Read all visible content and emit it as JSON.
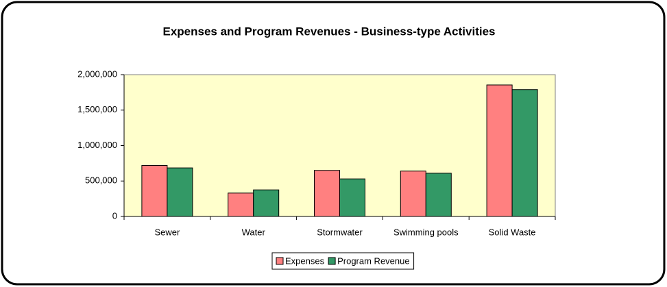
{
  "chart_data": {
    "type": "bar",
    "title": "Expenses and Program Revenues - Business-type Activities",
    "categories": [
      "Sewer",
      "Water",
      "Stormwater",
      "Swimming pools",
      "Solid Waste"
    ],
    "series": [
      {
        "name": "Expenses",
        "color": "#ff8080",
        "values": [
          720000,
          330000,
          650000,
          640000,
          1855000
        ]
      },
      {
        "name": "Program Revenue",
        "color": "#339966",
        "values": [
          685000,
          375000,
          530000,
          610000,
          1790000
        ]
      }
    ],
    "ylim": [
      0,
      2000000
    ],
    "yticks": [
      0,
      {
        "value": 500000,
        "label": "500,000"
      },
      {
        "value": 1000000,
        "label": "1,000,000"
      },
      {
        "value": 1500000,
        "label": "1,500,000"
      },
      {
        "value": 2000000,
        "label": "2,000,000"
      }
    ],
    "legend": "bottom"
  }
}
